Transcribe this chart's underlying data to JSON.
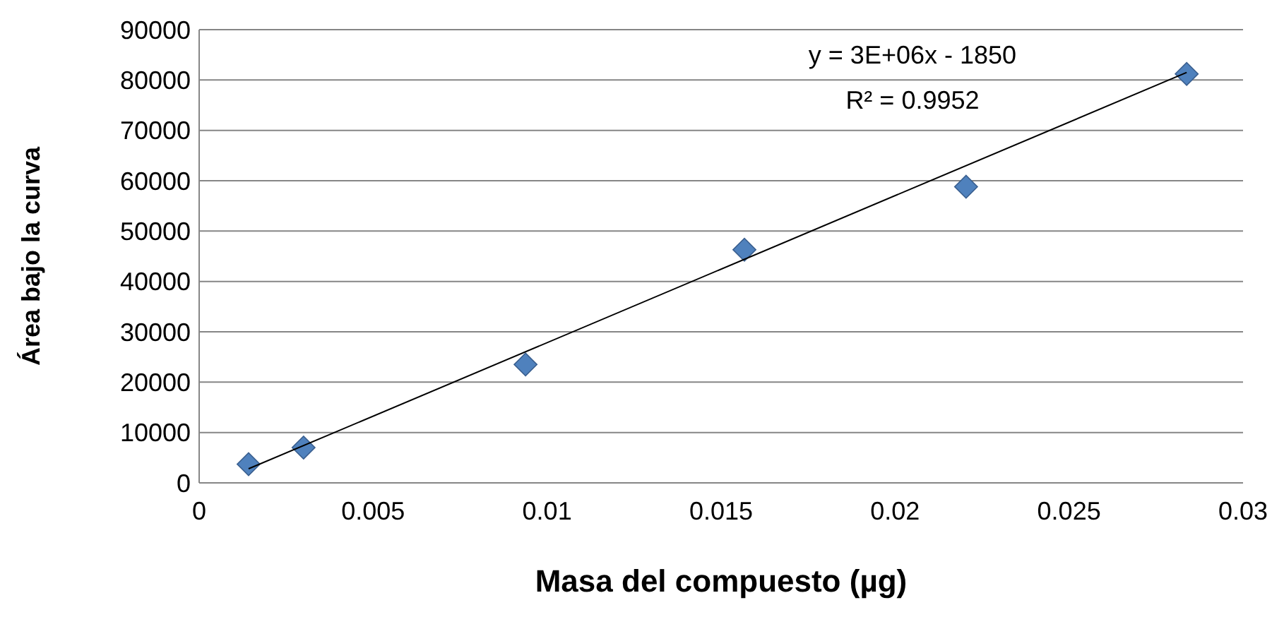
{
  "chart_data": {
    "type": "scatter",
    "xlabel": "Masa del compuesto (µg)",
    "ylabel": "Área bajo la curva",
    "xlim": [
      0,
      0.03
    ],
    "xticks": [
      0,
      0.005,
      0.01,
      0.015,
      0.02,
      0.025,
      0.03
    ],
    "ylim": [
      0,
      90000
    ],
    "yticks": [
      0,
      10000,
      20000,
      30000,
      40000,
      50000,
      60000,
      70000,
      80000,
      90000
    ],
    "grid": "y",
    "marker": "diamond",
    "series": [
      {
        "color": "#4f81bd",
        "x": [
          0.00142,
          0.003,
          0.00938,
          0.01567,
          0.02204,
          0.02838
        ],
        "values": [
          3700,
          7000,
          23500,
          46300,
          58800,
          81200
        ]
      },
      {
        "type": "line",
        "color": "#000000",
        "marker": "none",
        "x": [
          0.00142,
          0.02838
        ],
        "values": [
          2800,
          81500
        ]
      }
    ],
    "annotations": [
      "y = 3E+06x - 1850",
      "R² = 0.9952"
    ]
  }
}
